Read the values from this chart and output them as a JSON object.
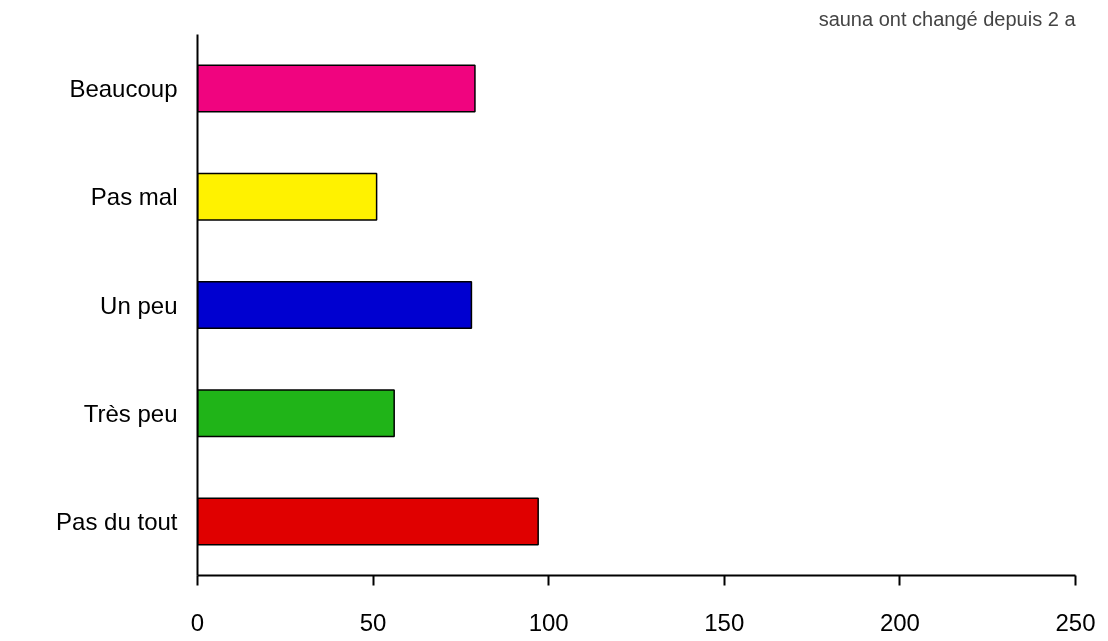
{
  "chart_data": {
    "type": "bar",
    "orientation": "horizontal",
    "title": "sauna ont changé depuis 2 a",
    "categories": [
      "Beaucoup",
      "Pas mal",
      "Un peu",
      "Très peu",
      "Pas du tout"
    ],
    "values": [
      79,
      51,
      78,
      56,
      97
    ],
    "colors": [
      "#f0047f",
      "#fff200",
      "#0000d0",
      "#20b418",
      "#e00000"
    ],
    "xlim": [
      0,
      250
    ],
    "xticks": [
      0,
      50,
      100,
      150,
      200,
      250
    ],
    "grid": false
  }
}
